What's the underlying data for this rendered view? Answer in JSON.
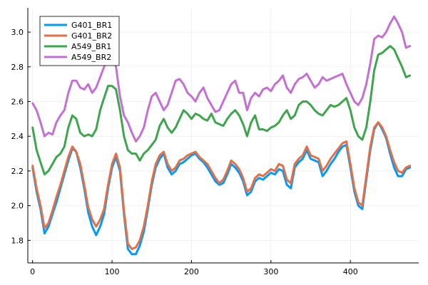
{
  "chart_data": {
    "type": "line",
    "title": "",
    "xlabel": "",
    "ylabel": "",
    "xlim": [
      -6,
      486
    ],
    "ylim": [
      1.67,
      3.14
    ],
    "xticks": [
      0,
      100,
      200,
      300,
      400
    ],
    "yticks": [
      1.8,
      2.0,
      2.2,
      2.4,
      2.6,
      2.8,
      3.0
    ],
    "xtick_labels": [
      "0",
      "100",
      "200",
      "300",
      "400"
    ],
    "ytick_labels": [
      "1.8",
      "2.0",
      "2.2",
      "2.4",
      "2.6",
      "2.8",
      "3.0"
    ],
    "grid": true,
    "legend_position": "top-left",
    "series": [
      {
        "name": "G401_BR1",
        "color": "#009AFA",
        "x": [
          0,
          5,
          10,
          15,
          20,
          25,
          30,
          35,
          40,
          45,
          50,
          55,
          60,
          65,
          70,
          75,
          80,
          85,
          90,
          95,
          100,
          105,
          110,
          115,
          120,
          125,
          130,
          135,
          140,
          145,
          150,
          155,
          160,
          165,
          170,
          175,
          180,
          185,
          190,
          195,
          200,
          205,
          210,
          215,
          220,
          225,
          230,
          235,
          240,
          245,
          250,
          255,
          260,
          265,
          270,
          275,
          280,
          285,
          290,
          295,
          300,
          305,
          310,
          315,
          320,
          325,
          330,
          335,
          340,
          345,
          350,
          355,
          360,
          365,
          370,
          375,
          380,
          385,
          390,
          395,
          400,
          405,
          410,
          415,
          420,
          425,
          430,
          435,
          440,
          445,
          450,
          455,
          460,
          465,
          470,
          475
        ],
        "y": [
          2.22,
          2.08,
          1.98,
          1.84,
          1.88,
          1.95,
          2.02,
          2.1,
          2.18,
          2.26,
          2.33,
          2.31,
          2.22,
          2.1,
          1.96,
          1.88,
          1.83,
          1.88,
          1.95,
          2.1,
          2.22,
          2.28,
          2.2,
          1.95,
          1.75,
          1.72,
          1.72,
          1.77,
          1.85,
          1.98,
          2.12,
          2.22,
          2.27,
          2.3,
          2.22,
          2.18,
          2.2,
          2.24,
          2.25,
          2.27,
          2.29,
          2.3,
          2.27,
          2.25,
          2.22,
          2.18,
          2.14,
          2.12,
          2.13,
          2.18,
          2.24,
          2.22,
          2.19,
          2.14,
          2.06,
          2.08,
          2.14,
          2.16,
          2.15,
          2.17,
          2.19,
          2.18,
          2.21,
          2.2,
          2.12,
          2.1,
          2.22,
          2.25,
          2.27,
          2.32,
          2.27,
          2.26,
          2.25,
          2.17,
          2.2,
          2.24,
          2.27,
          2.31,
          2.34,
          2.35,
          2.22,
          2.08,
          2.0,
          1.98,
          2.15,
          2.32,
          2.44,
          2.48,
          2.44,
          2.39,
          2.3,
          2.22,
          2.17,
          2.17,
          2.21,
          2.22
        ]
      },
      {
        "name": "G401_BR2",
        "color": "#E26F46",
        "x": [
          0,
          5,
          10,
          15,
          20,
          25,
          30,
          35,
          40,
          45,
          50,
          55,
          60,
          65,
          70,
          75,
          80,
          85,
          90,
          95,
          100,
          105,
          110,
          115,
          120,
          125,
          130,
          135,
          140,
          145,
          150,
          155,
          160,
          165,
          170,
          175,
          180,
          185,
          190,
          195,
          200,
          205,
          210,
          215,
          220,
          225,
          230,
          235,
          240,
          245,
          250,
          255,
          260,
          265,
          270,
          275,
          280,
          285,
          290,
          295,
          300,
          305,
          310,
          315,
          320,
          325,
          330,
          335,
          340,
          345,
          350,
          355,
          360,
          365,
          370,
          375,
          380,
          385,
          390,
          395,
          400,
          405,
          410,
          415,
          420,
          425,
          430,
          435,
          440,
          445,
          450,
          455,
          460,
          465,
          470,
          475
        ],
        "y": [
          2.23,
          2.1,
          2.0,
          1.87,
          1.9,
          1.97,
          2.05,
          2.12,
          2.2,
          2.28,
          2.34,
          2.31,
          2.24,
          2.12,
          1.99,
          1.92,
          1.88,
          1.92,
          1.98,
          2.12,
          2.24,
          2.3,
          2.22,
          1.97,
          1.78,
          1.75,
          1.76,
          1.8,
          1.88,
          2.0,
          2.14,
          2.24,
          2.29,
          2.31,
          2.24,
          2.2,
          2.22,
          2.26,
          2.27,
          2.29,
          2.3,
          2.31,
          2.28,
          2.26,
          2.24,
          2.2,
          2.16,
          2.13,
          2.15,
          2.2,
          2.26,
          2.24,
          2.21,
          2.16,
          2.08,
          2.1,
          2.16,
          2.18,
          2.17,
          2.19,
          2.21,
          2.2,
          2.24,
          2.23,
          2.15,
          2.13,
          2.24,
          2.27,
          2.29,
          2.34,
          2.29,
          2.28,
          2.27,
          2.2,
          2.23,
          2.27,
          2.3,
          2.33,
          2.36,
          2.37,
          2.24,
          2.1,
          2.02,
          2.0,
          2.17,
          2.34,
          2.45,
          2.48,
          2.45,
          2.4,
          2.32,
          2.25,
          2.2,
          2.19,
          2.22,
          2.23
        ]
      },
      {
        "name": "A549_BR1",
        "color": "#3EA44E",
        "x": [
          0,
          5,
          10,
          15,
          20,
          25,
          30,
          35,
          40,
          45,
          50,
          55,
          60,
          65,
          70,
          75,
          80,
          85,
          90,
          95,
          100,
          105,
          110,
          115,
          120,
          125,
          130,
          135,
          140,
          145,
          150,
          155,
          160,
          165,
          170,
          175,
          180,
          185,
          190,
          195,
          200,
          205,
          210,
          215,
          220,
          225,
          230,
          235,
          240,
          245,
          250,
          255,
          260,
          265,
          270,
          275,
          280,
          285,
          290,
          295,
          300,
          305,
          310,
          315,
          320,
          325,
          330,
          335,
          340,
          345,
          350,
          355,
          360,
          365,
          370,
          375,
          380,
          385,
          390,
          395,
          400,
          405,
          410,
          415,
          420,
          425,
          430,
          435,
          440,
          445,
          450,
          455,
          460,
          465,
          470,
          475
        ],
        "y": [
          2.45,
          2.32,
          2.25,
          2.18,
          2.2,
          2.24,
          2.28,
          2.3,
          2.34,
          2.45,
          2.52,
          2.5,
          2.42,
          2.4,
          2.41,
          2.4,
          2.44,
          2.55,
          2.62,
          2.69,
          2.69,
          2.67,
          2.55,
          2.4,
          2.32,
          2.3,
          2.3,
          2.26,
          2.3,
          2.32,
          2.35,
          2.38,
          2.46,
          2.5,
          2.45,
          2.42,
          2.45,
          2.5,
          2.55,
          2.53,
          2.5,
          2.53,
          2.52,
          2.5,
          2.49,
          2.53,
          2.48,
          2.47,
          2.46,
          2.5,
          2.53,
          2.55,
          2.52,
          2.47,
          2.4,
          2.48,
          2.52,
          2.44,
          2.44,
          2.43,
          2.45,
          2.46,
          2.48,
          2.52,
          2.55,
          2.5,
          2.52,
          2.58,
          2.6,
          2.6,
          2.58,
          2.55,
          2.53,
          2.52,
          2.55,
          2.58,
          2.57,
          2.58,
          2.6,
          2.62,
          2.55,
          2.45,
          2.4,
          2.38,
          2.45,
          2.6,
          2.78,
          2.87,
          2.88,
          2.9,
          2.92,
          2.9,
          2.85,
          2.8,
          2.74,
          2.75
        ]
      },
      {
        "name": "A549_BR2",
        "color": "#C271D2",
        "x": [
          0,
          5,
          10,
          15,
          20,
          25,
          30,
          35,
          40,
          45,
          50,
          55,
          60,
          65,
          70,
          75,
          80,
          85,
          90,
          95,
          100,
          105,
          110,
          115,
          120,
          125,
          130,
          135,
          140,
          145,
          150,
          155,
          160,
          165,
          170,
          175,
          180,
          185,
          190,
          195,
          200,
          205,
          210,
          215,
          220,
          225,
          230,
          235,
          240,
          245,
          250,
          255,
          260,
          265,
          270,
          275,
          280,
          285,
          290,
          295,
          300,
          305,
          310,
          315,
          320,
          325,
          330,
          335,
          340,
          345,
          350,
          355,
          360,
          365,
          370,
          375,
          380,
          385,
          390,
          395,
          400,
          405,
          410,
          415,
          420,
          425,
          430,
          435,
          440,
          445,
          450,
          455,
          460,
          465,
          470,
          475
        ],
        "y": [
          2.59,
          2.55,
          2.48,
          2.4,
          2.42,
          2.41,
          2.48,
          2.52,
          2.55,
          2.65,
          2.72,
          2.72,
          2.68,
          2.67,
          2.7,
          2.65,
          2.68,
          2.74,
          2.8,
          2.85,
          2.88,
          2.8,
          2.63,
          2.52,
          2.48,
          2.42,
          2.37,
          2.4,
          2.45,
          2.55,
          2.63,
          2.65,
          2.6,
          2.55,
          2.58,
          2.65,
          2.72,
          2.73,
          2.7,
          2.65,
          2.63,
          2.6,
          2.65,
          2.68,
          2.62,
          2.58,
          2.54,
          2.55,
          2.6,
          2.65,
          2.7,
          2.72,
          2.65,
          2.65,
          2.55,
          2.62,
          2.65,
          2.63,
          2.67,
          2.68,
          2.66,
          2.7,
          2.72,
          2.75,
          2.68,
          2.65,
          2.7,
          2.73,
          2.74,
          2.76,
          2.72,
          2.68,
          2.7,
          2.74,
          2.72,
          2.73,
          2.74,
          2.75,
          2.76,
          2.7,
          2.65,
          2.6,
          2.58,
          2.62,
          2.7,
          2.82,
          2.96,
          2.98,
          2.97,
          3.0,
          3.05,
          3.09,
          3.05,
          3.0,
          2.91,
          2.92
        ]
      }
    ]
  }
}
